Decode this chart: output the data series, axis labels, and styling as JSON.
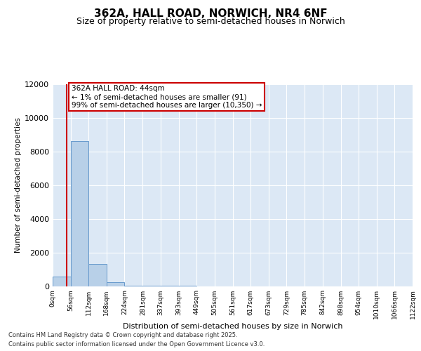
{
  "title": "362A, HALL ROAD, NORWICH, NR4 6NF",
  "subtitle": "Size of property relative to semi-detached houses in Norwich",
  "xlabel": "Distribution of semi-detached houses by size in Norwich",
  "ylabel": "Number of semi-detached properties",
  "bin_edges": [
    0,
    56,
    112,
    168,
    224,
    281,
    337,
    393,
    449,
    505,
    561,
    617,
    673,
    729,
    785,
    842,
    898,
    954,
    1010,
    1066,
    1122
  ],
  "bin_counts": [
    550,
    8600,
    1300,
    250,
    30,
    5,
    2,
    1,
    0,
    0,
    0,
    0,
    0,
    0,
    0,
    0,
    0,
    0,
    0,
    0
  ],
  "bar_color": "#b8d0e8",
  "bar_edge_color": "#6699cc",
  "property_size": 44,
  "vline_color": "#cc0000",
  "annotation_text": "362A HALL ROAD: 44sqm\n← 1% of semi-detached houses are smaller (91)\n99% of semi-detached houses are larger (10,350) →",
  "annotation_box_color": "#cc0000",
  "ylim": [
    0,
    12000
  ],
  "yticks": [
    0,
    2000,
    4000,
    6000,
    8000,
    10000,
    12000
  ],
  "background_color": "#dce8f5",
  "footer_line1": "Contains HM Land Registry data © Crown copyright and database right 2025.",
  "footer_line2": "Contains public sector information licensed under the Open Government Licence v3.0.",
  "title_fontsize": 11,
  "subtitle_fontsize": 9,
  "ylabel_fontsize": 7.5,
  "xlabel_fontsize": 8,
  "ytick_fontsize": 8,
  "xtick_fontsize": 6.5,
  "annotation_fontsize": 7.5,
  "footer_fontsize": 6
}
